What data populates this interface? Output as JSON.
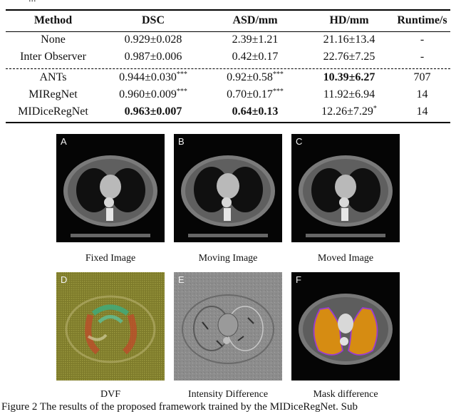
{
  "clipped_caption": "...",
  "table": {
    "headers": [
      "Method",
      "DSC",
      "ASD/mm",
      "HD/mm",
      "Runtime/s"
    ],
    "rows": [
      {
        "method": "None",
        "dsc": "0.929±0.028",
        "dsc_sig": "",
        "asd": "2.39±1.21",
        "asd_sig": "",
        "hd": "21.16±13.4",
        "hd_sig": "",
        "runtime": "-"
      },
      {
        "method": "Inter Observer",
        "dsc": "0.987±0.006",
        "dsc_sig": "",
        "asd": "0.42±0.17",
        "asd_sig": "",
        "hd": "22.76±7.25",
        "hd_sig": "",
        "runtime": "-"
      },
      {
        "method": "ANTs",
        "dsc": "0.944±0.030",
        "dsc_sig": "***",
        "asd": "0.92±0.58",
        "asd_sig": "***",
        "hd": "10.39±6.27",
        "hd_sig": "",
        "runtime": "707"
      },
      {
        "method": "MIRegNet",
        "dsc": "0.960±0.009",
        "dsc_sig": "***",
        "asd": "0.70±0.17",
        "asd_sig": "***",
        "hd": "11.92±6.94",
        "hd_sig": "",
        "runtime": "14"
      },
      {
        "method": "MIDiceRegNet",
        "dsc": "0.963±0.007",
        "dsc_sig": "",
        "asd": "0.64±0.13",
        "asd_sig": "",
        "hd": "12.26±7.29",
        "hd_sig": "*",
        "runtime": "14"
      }
    ]
  },
  "figure": {
    "panels": [
      {
        "letter": "A",
        "caption": "Fixed Image"
      },
      {
        "letter": "B",
        "caption": "Moving Image"
      },
      {
        "letter": "C",
        "caption": "Moved Image"
      },
      {
        "letter": "D",
        "caption": "DVF"
      },
      {
        "letter": "E",
        "caption": "Intensity Difference"
      },
      {
        "letter": "F",
        "caption": "Mask difference"
      }
    ],
    "caption": "Figure 2 The results of the proposed framework trained by the MIDiceRegNet. Sub"
  }
}
